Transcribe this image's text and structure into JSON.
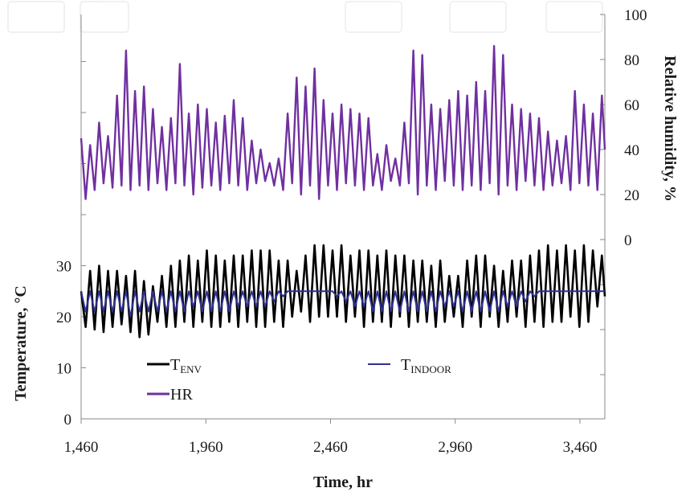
{
  "chart_data": {
    "type": "line",
    "xlabel": "Time, hr",
    "ylabel_left": "Temperature, °C",
    "ylabel_right": "Relative humidity, %",
    "xlim": [
      1460,
      3560
    ],
    "ylim_left": [
      0,
      40
    ],
    "ylim_right": [
      0,
      100
    ],
    "x_ticks": [
      1460,
      1960,
      2460,
      2960,
      3460
    ],
    "x_tick_labels": [
      "1,460",
      "1,960",
      "2,460",
      "2,960",
      "3,460"
    ],
    "y_left_tick_labels": [
      "0",
      "10",
      "20",
      "30"
    ],
    "y_right_tick_labels": [
      "0",
      "20",
      "40",
      "60",
      "80",
      "100"
    ],
    "grid": false,
    "legend_position": "lower-left",
    "series": [
      {
        "name": "T_ENV",
        "label_main": "T",
        "label_sub": "ENV",
        "axis": "left",
        "color": "#000000",
        "x": [
          1460,
          1478,
          1496,
          1514,
          1532,
          1550,
          1568,
          1586,
          1604,
          1622,
          1640,
          1658,
          1676,
          1694,
          1712,
          1730,
          1748,
          1766,
          1784,
          1802,
          1820,
          1838,
          1856,
          1874,
          1892,
          1910,
          1928,
          1946,
          1964,
          1982,
          2000,
          2018,
          2036,
          2054,
          2072,
          2090,
          2108,
          2126,
          2144,
          2162,
          2180,
          2198,
          2216,
          2234,
          2252,
          2270,
          2288,
          2306,
          2324,
          2342,
          2360,
          2378,
          2396,
          2414,
          2432,
          2450,
          2468,
          2486,
          2504,
          2522,
          2540,
          2558,
          2576,
          2594,
          2612,
          2630,
          2648,
          2666,
          2684,
          2702,
          2720,
          2738,
          2756,
          2774,
          2792,
          2810,
          2828,
          2846,
          2864,
          2882,
          2900,
          2918,
          2936,
          2954,
          2972,
          2990,
          3008,
          3026,
          3044,
          3062,
          3080,
          3098,
          3116,
          3134,
          3152,
          3170,
          3188,
          3206,
          3224,
          3242,
          3260,
          3278,
          3296,
          3314,
          3332,
          3350,
          3368,
          3386,
          3404,
          3422,
          3440,
          3458,
          3476,
          3494,
          3512,
          3530,
          3548,
          3560
        ],
        "y": [
          25,
          18,
          29,
          17.5,
          30,
          17,
          29,
          18,
          29,
          18.5,
          28,
          17,
          29,
          16,
          27,
          16.5,
          26,
          19,
          28,
          18,
          30,
          18,
          31,
          19,
          32,
          18,
          31,
          19,
          33,
          18,
          32,
          18,
          31,
          19,
          32,
          18,
          32,
          19,
          33,
          18,
          33,
          18,
          33,
          19,
          31,
          18,
          31,
          20,
          29,
          21,
          32,
          19,
          34,
          20,
          34,
          20,
          33,
          20,
          34,
          19,
          32,
          20,
          33,
          18,
          33,
          19,
          32,
          19,
          33,
          18,
          32,
          20,
          32,
          18,
          31,
          19,
          31,
          19,
          30,
          18,
          31,
          19,
          28,
          20,
          28,
          18,
          31,
          20,
          32,
          18,
          32,
          20,
          30,
          18,
          29,
          19,
          31,
          20,
          31,
          18,
          32,
          19,
          33,
          18,
          34,
          19,
          33,
          19,
          34,
          20,
          33,
          18,
          34,
          19,
          33,
          22,
          32,
          24
        ],
        "period_hours": 24,
        "note": "daily oscillation between roughly 17 and 34 °C"
      },
      {
        "name": "T_INDOOR",
        "label_main": "T",
        "label_sub": "INDOOR",
        "axis": "left",
        "color": "#2e3192",
        "x": [
          1460,
          1478,
          1496,
          1514,
          1532,
          1550,
          1568,
          1586,
          1604,
          1622,
          1640,
          1658,
          1676,
          1694,
          1712,
          1730,
          1748,
          1766,
          1784,
          1802,
          1820,
          1838,
          1856,
          1874,
          1892,
          1910,
          1928,
          1946,
          1964,
          1982,
          2000,
          2018,
          2036,
          2054,
          2072,
          2090,
          2108,
          2126,
          2144,
          2162,
          2180,
          2198,
          2216,
          2234,
          2252,
          2270,
          2288,
          2306,
          2324,
          2342,
          2360,
          2378,
          2396,
          2414,
          2432,
          2450,
          2468,
          2486,
          2504,
          2522,
          2540,
          2558,
          2576,
          2594,
          2612,
          2630,
          2648,
          2666,
          2684,
          2702,
          2720,
          2738,
          2756,
          2774,
          2792,
          2810,
          2828,
          2846,
          2864,
          2882,
          2900,
          2918,
          2936,
          2954,
          2972,
          2990,
          3008,
          3026,
          3044,
          3062,
          3080,
          3098,
          3116,
          3134,
          3152,
          3170,
          3188,
          3206,
          3224,
          3242,
          3260,
          3278,
          3296,
          3314,
          3332,
          3350,
          3368,
          3386,
          3404,
          3422,
          3440,
          3458,
          3476,
          3494,
          3512,
          3530,
          3548,
          3560
        ],
        "y": [
          25,
          21,
          25,
          21,
          25,
          21,
          25,
          21,
          25,
          21,
          25,
          20,
          25,
          21,
          25,
          21,
          25,
          21,
          25,
          21,
          25,
          21,
          25,
          21,
          25,
          22,
          25,
          21,
          25,
          21,
          25,
          21,
          25,
          21,
          25,
          22,
          25,
          22,
          25,
          22,
          25,
          22,
          25,
          23,
          25,
          24,
          25,
          25,
          25,
          25,
          25,
          25,
          25,
          25,
          25,
          25,
          25,
          24,
          25,
          23,
          25,
          22,
          25,
          22,
          25,
          21,
          25,
          21,
          25,
          21,
          25,
          21,
          25,
          21,
          25,
          21,
          25,
          21,
          25,
          21,
          25,
          22,
          25,
          22,
          25,
          21,
          25,
          21,
          25,
          21,
          25,
          21,
          25,
          21,
          25,
          22,
          25,
          22,
          25,
          23,
          25,
          24,
          25,
          25,
          25,
          25,
          25,
          25,
          25,
          25,
          25,
          25,
          25,
          25,
          25,
          25,
          25,
          25
        ],
        "period_hours": 24,
        "note": "holds near 25 °C, dipping to about 21 °C during cooler periods"
      },
      {
        "name": "HR",
        "label_main": "HR",
        "axis": "right",
        "color": "#7030a0",
        "x": [
          1460,
          1478,
          1496,
          1514,
          1532,
          1550,
          1568,
          1586,
          1604,
          1622,
          1640,
          1658,
          1676,
          1694,
          1712,
          1730,
          1748,
          1766,
          1784,
          1802,
          1820,
          1838,
          1856,
          1874,
          1892,
          1910,
          1928,
          1946,
          1964,
          1982,
          2000,
          2018,
          2036,
          2054,
          2072,
          2090,
          2108,
          2126,
          2144,
          2162,
          2180,
          2198,
          2216,
          2234,
          2252,
          2270,
          2288,
          2306,
          2324,
          2342,
          2360,
          2378,
          2396,
          2414,
          2432,
          2450,
          2468,
          2486,
          2504,
          2522,
          2540,
          2558,
          2576,
          2594,
          2612,
          2630,
          2648,
          2666,
          2684,
          2702,
          2720,
          2738,
          2756,
          2774,
          2792,
          2810,
          2828,
          2846,
          2864,
          2882,
          2900,
          2918,
          2936,
          2954,
          2972,
          2990,
          3008,
          3026,
          3044,
          3062,
          3080,
          3098,
          3116,
          3134,
          3152,
          3170,
          3188,
          3206,
          3224,
          3242,
          3260,
          3278,
          3296,
          3314,
          3332,
          3350,
          3368,
          3386,
          3404,
          3422,
          3440,
          3458,
          3476,
          3494,
          3512,
          3530,
          3548,
          3560
        ],
        "y": [
          45,
          18,
          42,
          22,
          52,
          25,
          46,
          23,
          64,
          24,
          84,
          22,
          66,
          24,
          68,
          22,
          58,
          25,
          50,
          22,
          54,
          25,
          78,
          24,
          56,
          20,
          60,
          23,
          58,
          24,
          52,
          22,
          55,
          25,
          62,
          24,
          54,
          22,
          44,
          25,
          40,
          26,
          34,
          24,
          36,
          22,
          56,
          25,
          72,
          20,
          68,
          24,
          76,
          18,
          62,
          24,
          56,
          22,
          60,
          25,
          58,
          24,
          56,
          22,
          54,
          24,
          38,
          22,
          42,
          26,
          36,
          24,
          52,
          25,
          84,
          20,
          82,
          24,
          60,
          22,
          58,
          26,
          62,
          24,
          66,
          22,
          64,
          24,
          70,
          22,
          66,
          25,
          86,
          20,
          82,
          24,
          60,
          22,
          58,
          26,
          56,
          24,
          54,
          22,
          48,
          24,
          44,
          25,
          46,
          22,
          66,
          25,
          60,
          24,
          56,
          22,
          64,
          40
        ],
        "period_hours": 24,
        "note": "daily oscillation roughly between 17 and 87 %"
      }
    ]
  }
}
